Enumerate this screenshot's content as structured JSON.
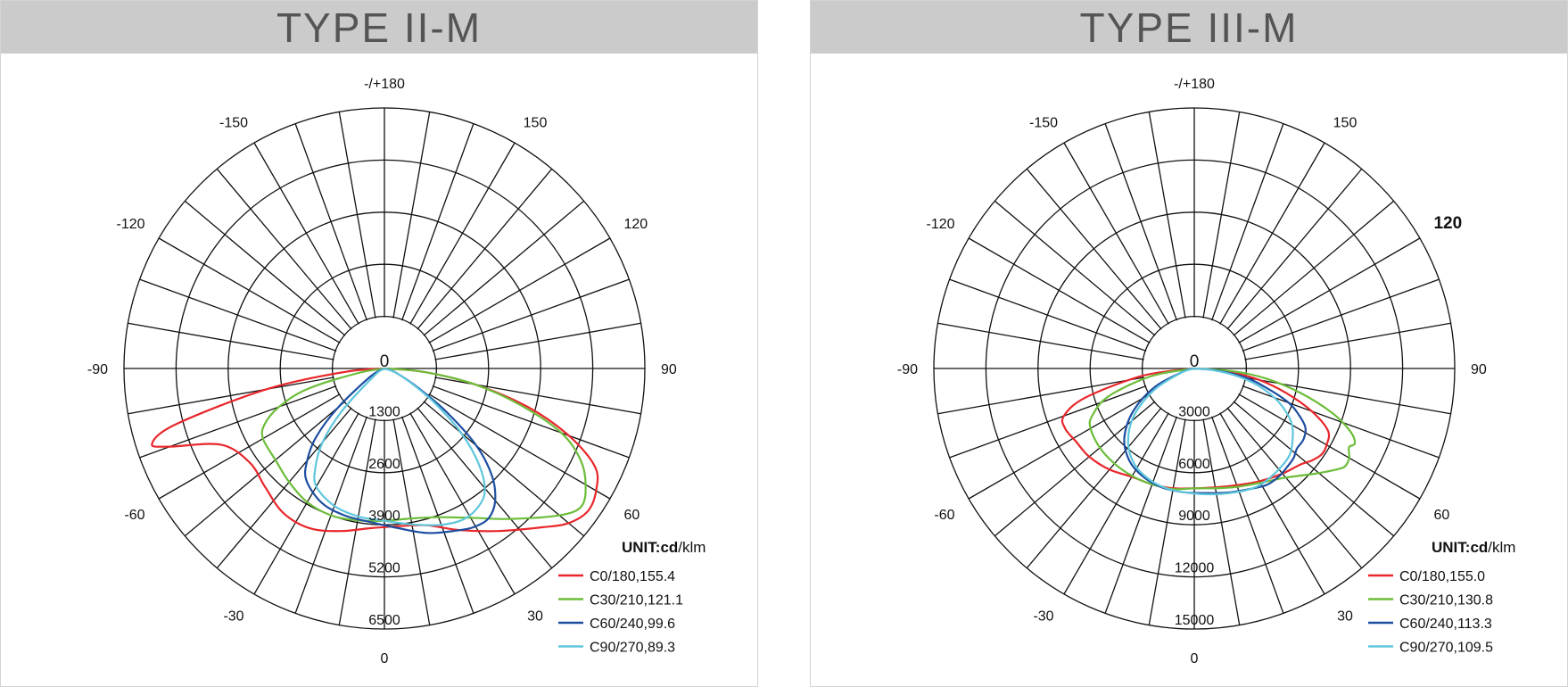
{
  "chart_data": [
    {
      "type": "polar",
      "title": "TYPE II-M",
      "unit_label_bold": "UNIT:cd",
      "unit_label_rest": "/klm",
      "angle_labels": [
        {
          "angle": 180,
          "text": "-/+180"
        },
        {
          "angle": 150,
          "text": "150"
        },
        {
          "angle": -150,
          "text": "-150"
        },
        {
          "angle": 120,
          "text": "120"
        },
        {
          "angle": -120,
          "text": "-120"
        },
        {
          "angle": 90,
          "text": "90"
        },
        {
          "angle": -90,
          "text": "-90"
        },
        {
          "angle": 60,
          "text": "60"
        },
        {
          "angle": -60,
          "text": "-60"
        },
        {
          "angle": 30,
          "text": "30"
        },
        {
          "angle": -30,
          "text": "-30"
        },
        {
          "angle": 0,
          "text": "0"
        }
      ],
      "center_label": "0",
      "radial_ticks": [
        1300,
        2600,
        3900,
        5200,
        6500
      ],
      "radial_tick_labels": [
        "1300",
        "2600",
        "3900",
        "5200",
        "6500"
      ],
      "rmax": 6500,
      "legend": [
        {
          "label": "C0/180,155.4",
          "color": "#e8262b"
        },
        {
          "label": "C30/210,121.1",
          "color": "#6cbd3a"
        },
        {
          "label": "C60/240,99.6",
          "color": "#1d4ea0"
        },
        {
          "label": "C90/270,89.3",
          "color": "#5fc6dc"
        }
      ],
      "series": [
        {
          "name": "C0/180,155.4",
          "color": "#e8262b",
          "points": [
            [
              -90,
              0
            ],
            [
              -85,
              1000
            ],
            [
              -80,
              3000
            ],
            [
              -75,
              5400
            ],
            [
              -72,
              6100
            ],
            [
              -70,
              5700
            ],
            [
              -65,
              4500
            ],
            [
              -55,
              4100
            ],
            [
              -45,
              4200
            ],
            [
              -35,
              4400
            ],
            [
              -25,
              4400
            ],
            [
              -15,
              4200
            ],
            [
              -5,
              4000
            ],
            [
              5,
              3950
            ],
            [
              15,
              4050
            ],
            [
              25,
              4450
            ],
            [
              35,
              4950
            ],
            [
              45,
              5600
            ],
            [
              50,
              6000
            ],
            [
              55,
              6200
            ],
            [
              60,
              6100
            ],
            [
              65,
              5800
            ],
            [
              70,
              4900
            ],
            [
              75,
              3700
            ],
            [
              80,
              2300
            ],
            [
              85,
              1000
            ],
            [
              90,
              0
            ]
          ]
        },
        {
          "name": "C30/210,121.1",
          "color": "#6cbd3a",
          "points": [
            [
              -90,
              0
            ],
            [
              -80,
              700
            ],
            [
              -75,
              2000
            ],
            [
              -70,
              2800
            ],
            [
              -65,
              3300
            ],
            [
              -60,
              3500
            ],
            [
              -50,
              3550
            ],
            [
              -40,
              3700
            ],
            [
              -30,
              3850
            ],
            [
              -20,
              3900
            ],
            [
              -10,
              3850
            ],
            [
              0,
              3800
            ],
            [
              10,
              3800
            ],
            [
              20,
              3950
            ],
            [
              30,
              4300
            ],
            [
              40,
              4900
            ],
            [
              50,
              5700
            ],
            [
              55,
              6000
            ],
            [
              60,
              5800
            ],
            [
              65,
              5400
            ],
            [
              70,
              4700
            ],
            [
              75,
              3500
            ],
            [
              80,
              2300
            ],
            [
              85,
              1000
            ],
            [
              90,
              0
            ]
          ]
        },
        {
          "name": "C60/240,99.6",
          "color": "#1d4ea0",
          "points": [
            [
              -90,
              0
            ],
            [
              -60,
              400
            ],
            [
              -50,
              1500
            ],
            [
              -45,
              2400
            ],
            [
              -40,
              3000
            ],
            [
              -35,
              3400
            ],
            [
              -25,
              3700
            ],
            [
              -15,
              3800
            ],
            [
              -5,
              3850
            ],
            [
              5,
              4000
            ],
            [
              15,
              4250
            ],
            [
              25,
              4450
            ],
            [
              30,
              4550
            ],
            [
              35,
              4550
            ],
            [
              40,
              4300
            ],
            [
              45,
              3800
            ],
            [
              50,
              3000
            ],
            [
              55,
              1900
            ],
            [
              60,
              1000
            ],
            [
              70,
              300
            ],
            [
              90,
              0
            ]
          ]
        },
        {
          "name": "C90/270,89.3",
          "color": "#5fc6dc",
          "points": [
            [
              -90,
              0
            ],
            [
              -55,
              300
            ],
            [
              -45,
              1500
            ],
            [
              -40,
              2400
            ],
            [
              -35,
              3000
            ],
            [
              -30,
              3400
            ],
            [
              -20,
              3650
            ],
            [
              -10,
              3750
            ],
            [
              0,
              3800
            ],
            [
              10,
              3950
            ],
            [
              20,
              4150
            ],
            [
              28,
              4250
            ],
            [
              35,
              4150
            ],
            [
              40,
              3900
            ],
            [
              45,
              3300
            ],
            [
              50,
              2500
            ],
            [
              55,
              1600
            ],
            [
              60,
              900
            ],
            [
              70,
              300
            ],
            [
              90,
              0
            ]
          ]
        }
      ]
    },
    {
      "type": "polar",
      "title": "TYPE III-M",
      "unit_label_bold": "UNIT:cd",
      "unit_label_rest": "/klm",
      "angle_labels": [
        {
          "angle": 180,
          "text": "-/+180"
        },
        {
          "angle": 150,
          "text": "150"
        },
        {
          "angle": -150,
          "text": "-150"
        },
        {
          "angle": 120,
          "text": "120",
          "bold": true
        },
        {
          "angle": -120,
          "text": "-120"
        },
        {
          "angle": 90,
          "text": "90"
        },
        {
          "angle": -90,
          "text": "-90"
        },
        {
          "angle": 60,
          "text": "60"
        },
        {
          "angle": -60,
          "text": "-60"
        },
        {
          "angle": 30,
          "text": "30"
        },
        {
          "angle": -30,
          "text": "-30"
        },
        {
          "angle": 0,
          "text": "0"
        }
      ],
      "center_label": "0",
      "radial_ticks": [
        3000,
        6000,
        9000,
        12000,
        15000
      ],
      "radial_tick_labels": [
        "3000",
        "6000",
        "9000",
        "12000",
        "15000"
      ],
      "rmax": 15000,
      "legend": [
        {
          "label": "C0/180,155.0",
          "color": "#e8262b"
        },
        {
          "label": "C30/210,130.8",
          "color": "#6cbd3a"
        },
        {
          "label": "C60/240,113.3",
          "color": "#1d4ea0"
        },
        {
          "label": "C90/270,109.5",
          "color": "#5fc6dc"
        }
      ],
      "series": [
        {
          "name": "C0/180,155.0",
          "color": "#e8262b",
          "points": [
            [
              -90,
              0
            ],
            [
              -82,
              3000
            ],
            [
              -75,
              6500
            ],
            [
              -70,
              8000
            ],
            [
              -65,
              8200
            ],
            [
              -58,
              8000
            ],
            [
              -50,
              7900
            ],
            [
              -40,
              7600
            ],
            [
              -30,
              7200
            ],
            [
              -20,
              7100
            ],
            [
              -10,
              7000
            ],
            [
              0,
              6900
            ],
            [
              10,
              6950
            ],
            [
              20,
              7150
            ],
            [
              30,
              7500
            ],
            [
              40,
              7900
            ],
            [
              48,
              8250
            ],
            [
              52,
              8600
            ],
            [
              56,
              8850
            ],
            [
              60,
              8800
            ],
            [
              65,
              8500
            ],
            [
              70,
              7200
            ],
            [
              75,
              5500
            ],
            [
              80,
              3800
            ],
            [
              85,
              1800
            ],
            [
              90,
              0
            ]
          ]
        },
        {
          "name": "C30/210,130.8",
          "color": "#6cbd3a",
          "points": [
            [
              -90,
              0
            ],
            [
              -80,
              2500
            ],
            [
              -72,
              5200
            ],
            [
              -65,
              6500
            ],
            [
              -60,
              6900
            ],
            [
              -50,
              7100
            ],
            [
              -40,
              7150
            ],
            [
              -30,
              7150
            ],
            [
              -20,
              7100
            ],
            [
              -10,
              7050
            ],
            [
              0,
              6900
            ],
            [
              10,
              7000
            ],
            [
              20,
              7250
            ],
            [
              30,
              7600
            ],
            [
              40,
              8200
            ],
            [
              48,
              9100
            ],
            [
              52,
              9650
            ],
            [
              55,
              10100
            ],
            [
              57,
              10350
            ],
            [
              60,
              10300
            ],
            [
              63,
              10000
            ],
            [
              65,
              10200
            ],
            [
              68,
              9700
            ],
            [
              72,
              8400
            ],
            [
              77,
              6300
            ],
            [
              82,
              4200
            ],
            [
              86,
              2200
            ],
            [
              90,
              0
            ]
          ]
        },
        {
          "name": "C60/240,113.3",
          "color": "#1d4ea0",
          "points": [
            [
              -90,
              0
            ],
            [
              -75,
              600
            ],
            [
              -65,
              2500
            ],
            [
              -55,
              4300
            ],
            [
              -45,
              5700
            ],
            [
              -35,
              6500
            ],
            [
              -25,
              6900
            ],
            [
              -15,
              7100
            ],
            [
              -5,
              7150
            ],
            [
              5,
              7200
            ],
            [
              15,
              7400
            ],
            [
              25,
              7650
            ],
            [
              32,
              7900
            ],
            [
              38,
              7900
            ],
            [
              43,
              7800
            ],
            [
              48,
              7700
            ],
            [
              52,
              7500
            ],
            [
              57,
              7500
            ],
            [
              62,
              7250
            ],
            [
              66,
              6600
            ],
            [
              70,
              5800
            ],
            [
              75,
              4300
            ],
            [
              80,
              3000
            ],
            [
              85,
              1300
            ],
            [
              90,
              0
            ]
          ]
        },
        {
          "name": "C90/270,109.5",
          "color": "#5fc6dc",
          "points": [
            [
              -90,
              0
            ],
            [
              -72,
              800
            ],
            [
              -62,
              2600
            ],
            [
              -52,
              4400
            ],
            [
              -42,
              5700
            ],
            [
              -32,
              6500
            ],
            [
              -22,
              6900
            ],
            [
              -12,
              7100
            ],
            [
              0,
              7200
            ],
            [
              10,
              7350
            ],
            [
              20,
              7550
            ],
            [
              28,
              7700
            ],
            [
              35,
              7650
            ],
            [
              42,
              7550
            ],
            [
              48,
              7400
            ],
            [
              54,
              7000
            ],
            [
              60,
              6500
            ],
            [
              65,
              5800
            ],
            [
              70,
              4900
            ],
            [
              75,
              3800
            ],
            [
              80,
              2500
            ],
            [
              85,
              1100
            ],
            [
              90,
              0
            ]
          ]
        }
      ]
    }
  ]
}
